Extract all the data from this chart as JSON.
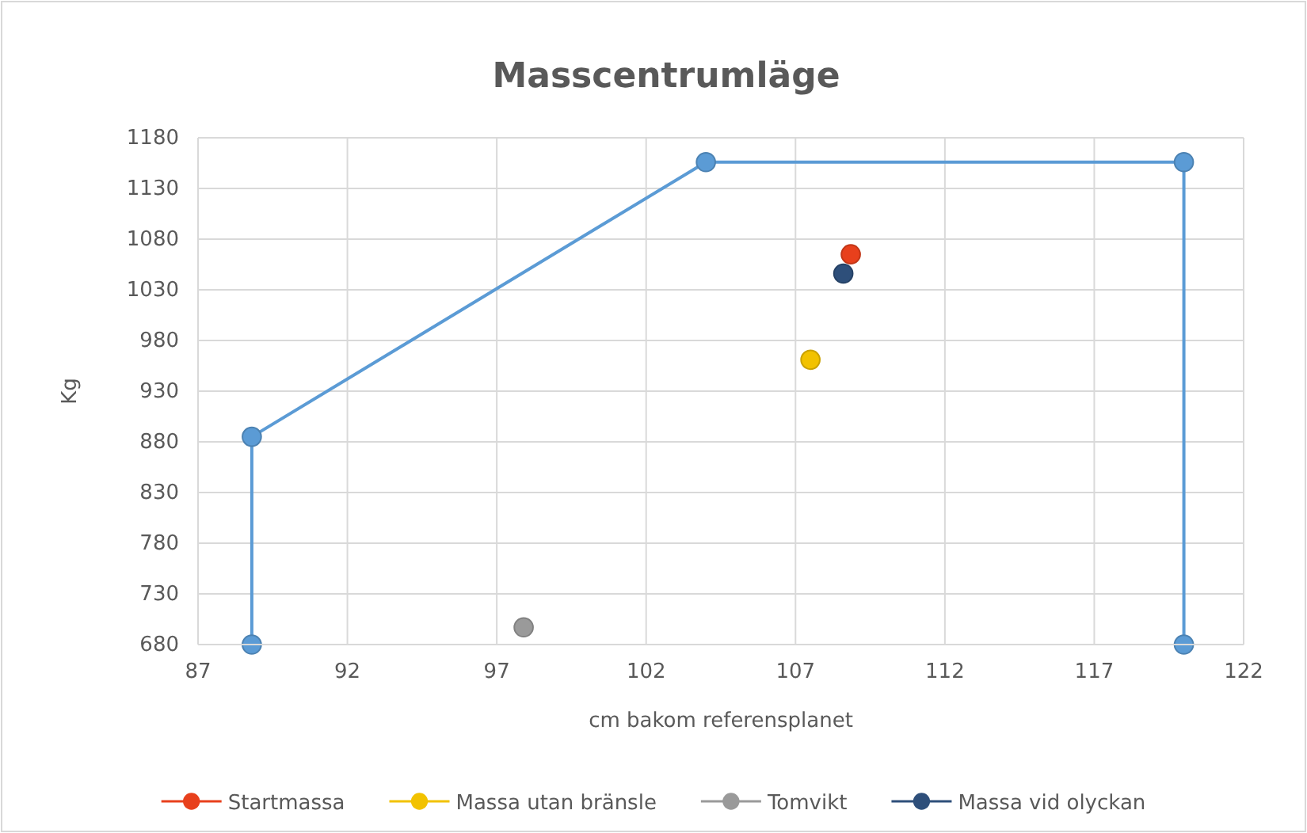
{
  "chart_data": {
    "type": "scatter",
    "title": "Masscentrumläge",
    "xlabel": "cm bakom referensplanet",
    "ylabel": "Kg",
    "xlim": [
      87,
      122
    ],
    "xticks": [
      87,
      92,
      97,
      102,
      107,
      112,
      117,
      122
    ],
    "ylim": [
      680,
      1180
    ],
    "yticks": [
      680,
      730,
      780,
      830,
      880,
      930,
      980,
      1030,
      1080,
      1130,
      1180
    ],
    "grid": true,
    "legend": "bottom",
    "marker": "circle",
    "series": [
      {
        "type": "line",
        "color": "#5b9bd5",
        "x": [
          88.8,
          88.8,
          104,
          120,
          120
        ],
        "values": [
          680,
          885,
          1156,
          1156,
          680
        ]
      },
      {
        "name": "Startmassa",
        "color": "#e8401c",
        "x": [
          108.85
        ],
        "values": [
          1065
        ]
      },
      {
        "name": "Massa utan bränsle",
        "color": "#f2c200",
        "x": [
          107.5
        ],
        "values": [
          961
        ]
      },
      {
        "name": "Tomvikt",
        "color": "#9a9a9a",
        "x": [
          97.9
        ],
        "values": [
          697
        ]
      },
      {
        "name": "Massa vid olyckan",
        "color": "#2e4f7a",
        "x": [
          108.6
        ],
        "values": [
          1046
        ]
      }
    ]
  }
}
